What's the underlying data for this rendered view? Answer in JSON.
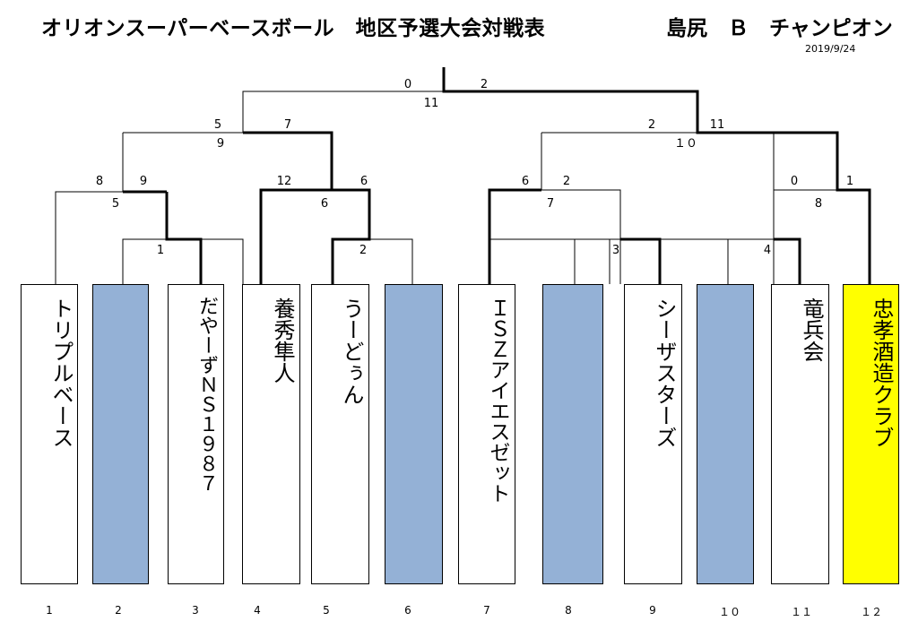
{
  "header": {
    "title": "オリオンスーパーベースボール　地区予選大会対戦表",
    "champion_label": "島尻　Ｂ　チャンピオン",
    "date": "2019/9/24"
  },
  "teams": [
    {
      "seed": "1",
      "name": "トリプルベース",
      "fill": "white"
    },
    {
      "seed": "2",
      "name": "",
      "fill": "bye"
    },
    {
      "seed": "3",
      "name": "だやーずＮＳ１９８７",
      "fill": "white"
    },
    {
      "seed": "4",
      "name": "養秀隼人",
      "fill": "white"
    },
    {
      "seed": "5",
      "name": "うーどぅん",
      "fill": "white"
    },
    {
      "seed": "6",
      "name": "",
      "fill": "bye"
    },
    {
      "seed": "7",
      "name": "ＩＳＺアイエスゼット",
      "fill": "white"
    },
    {
      "seed": "8",
      "name": "",
      "fill": "bye"
    },
    {
      "seed": "9",
      "name": "シーザスターズ",
      "fill": "white"
    },
    {
      "seed": "１０",
      "name": "",
      "fill": "bye"
    },
    {
      "seed": "１１",
      "name": "竜兵会",
      "fill": "white"
    },
    {
      "seed": "１２",
      "name": "忠孝酒造クラブ",
      "fill": "champion"
    }
  ],
  "colors": {
    "bye": "#94b1d6",
    "champion": "#ffff00",
    "line": "#000000"
  },
  "scores": {
    "final_left": "0",
    "final_right": "2",
    "final_game": "11",
    "semi_left_a": "5",
    "semi_left_b": "7",
    "semi_left_game": "9",
    "semi_right_a": "2",
    "semi_right_b": "11",
    "semi_right_game": "１０",
    "qf1_a": "8",
    "qf1_b": "9",
    "qf1_game": "5",
    "qf2_a": "12",
    "qf2_b": "6",
    "qf2_game": "6",
    "qf3_a": "6",
    "qf3_b": "2",
    "qf3_game": "7",
    "qf4_a": "0",
    "qf4_b": "1",
    "qf4_game": "8",
    "r1_game1": "1",
    "r1_game2": "2",
    "r1_game3": "3",
    "r1_game4": "4"
  }
}
